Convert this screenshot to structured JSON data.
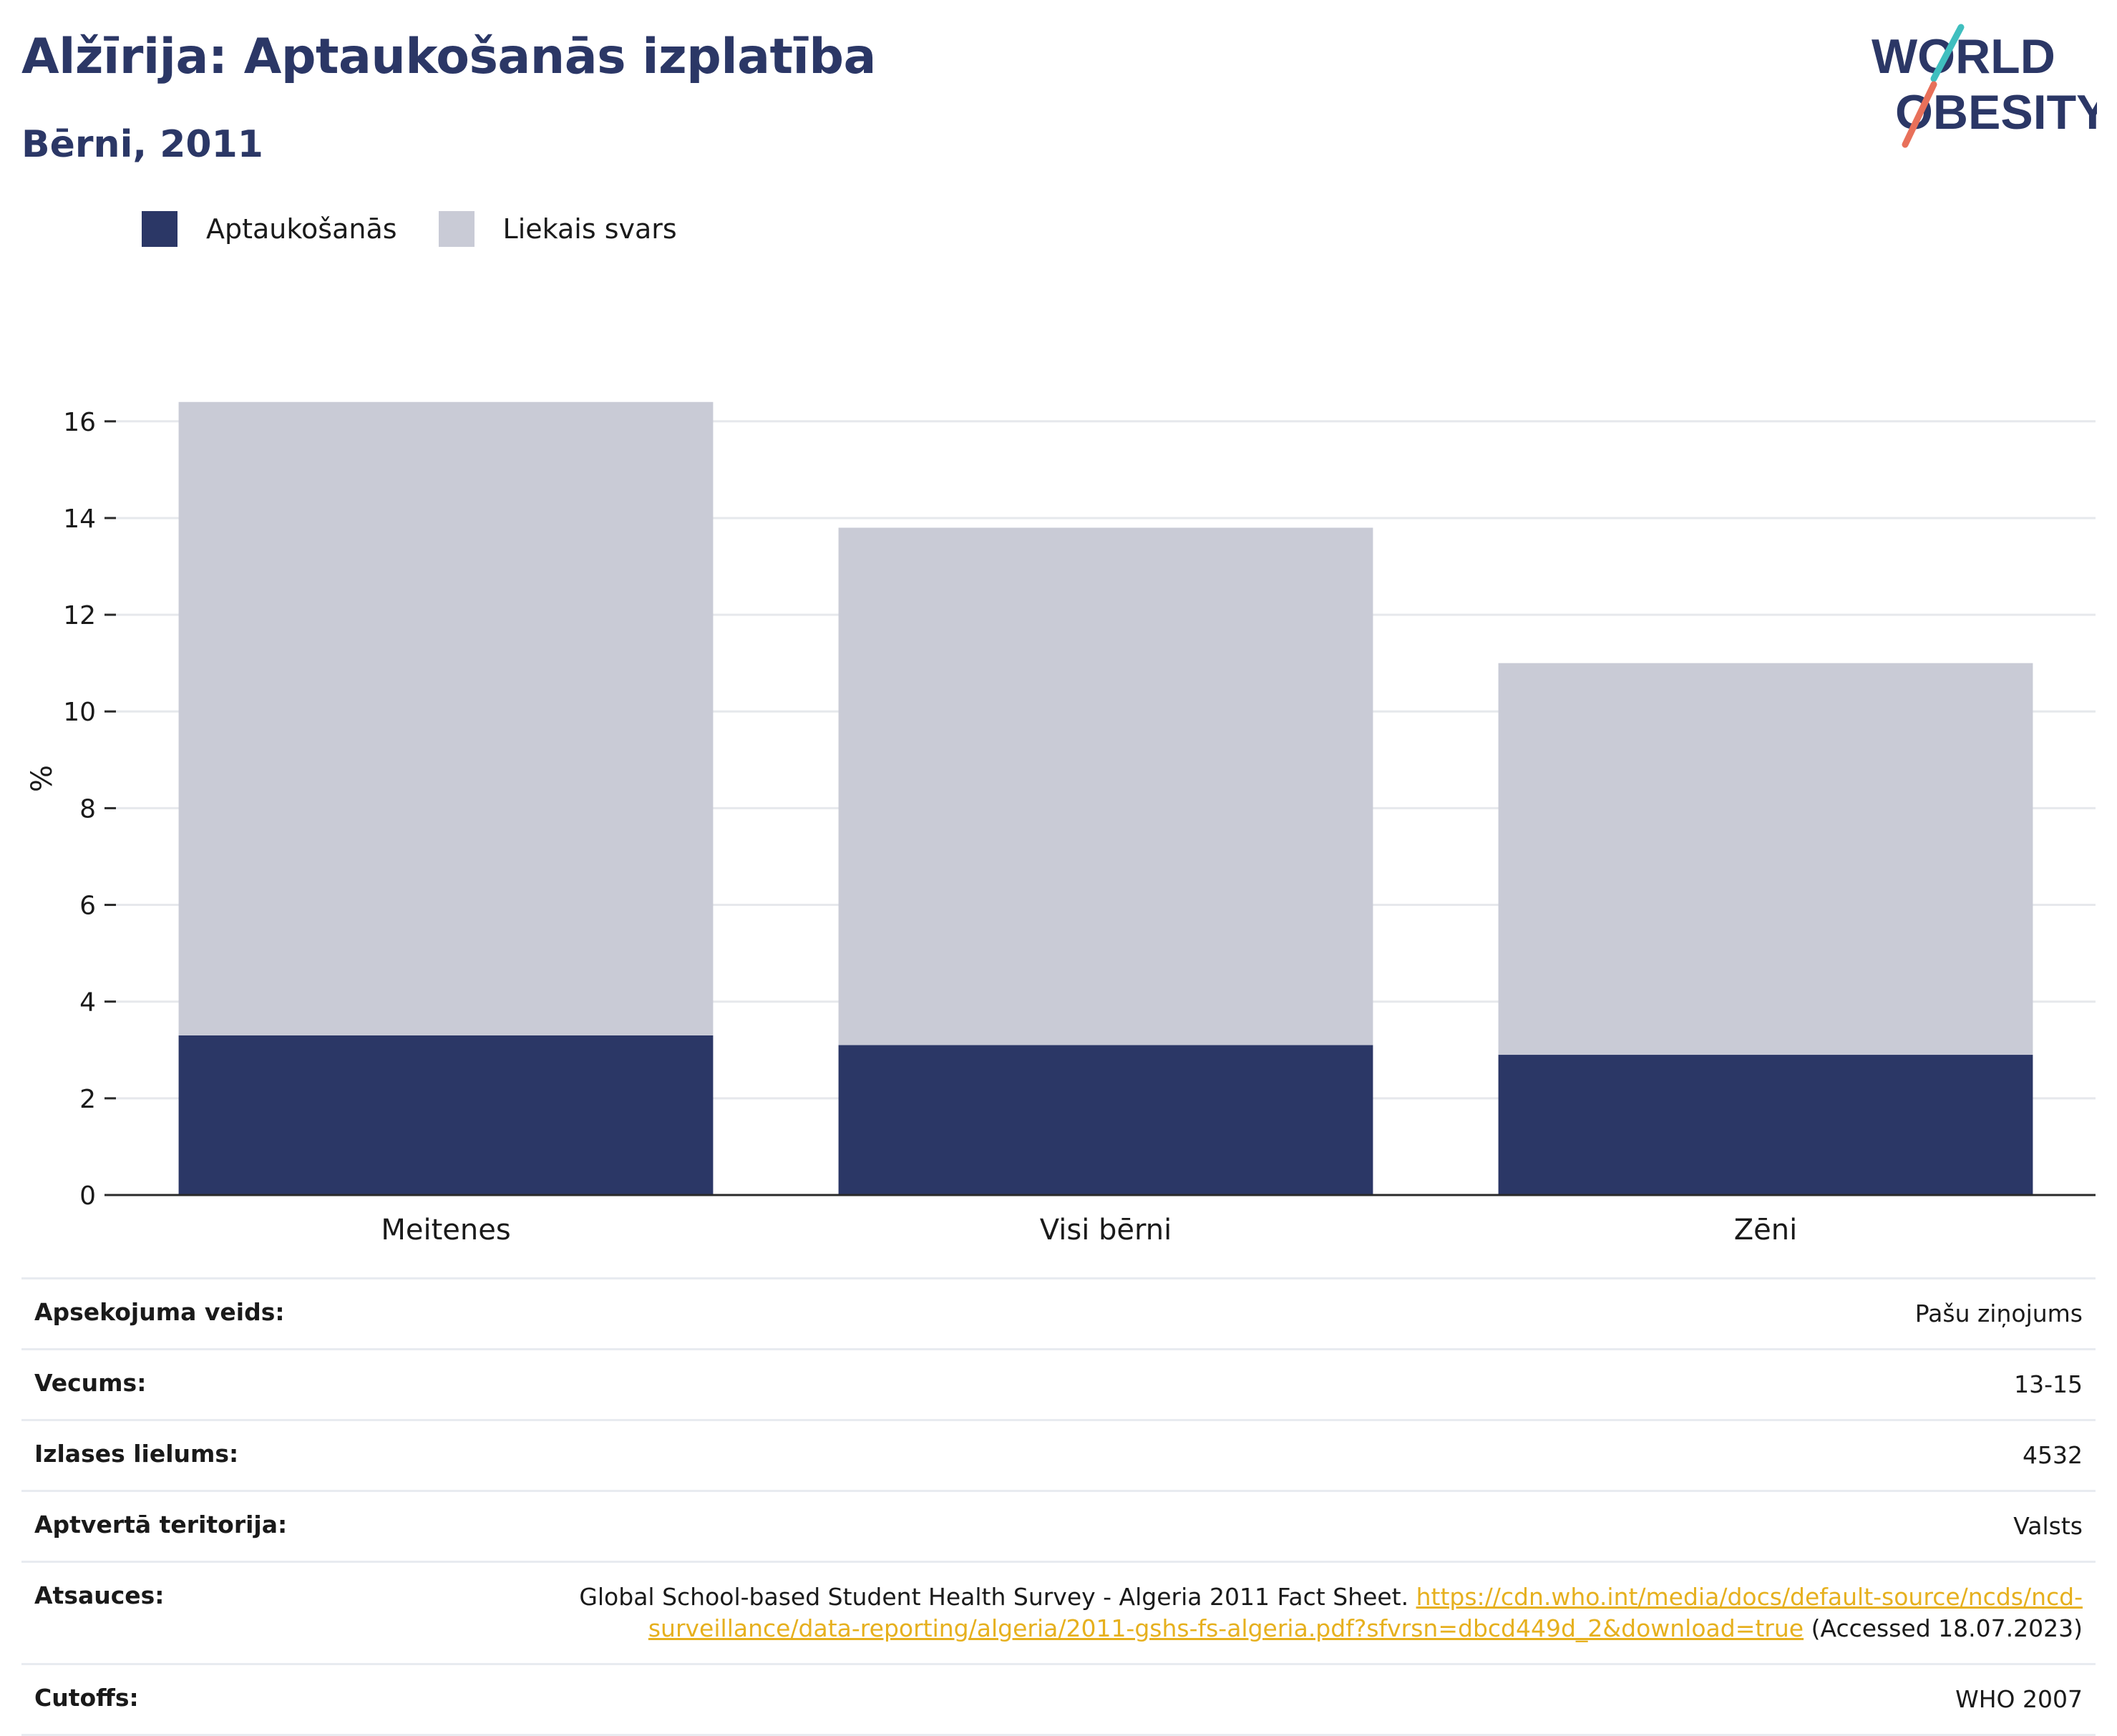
{
  "header": {
    "title": "Alžīrija: Aptaukošanās izplatība",
    "subtitle": "Bērni, 2011",
    "logo_line1": "WORLD",
    "logo_line2": "OBESITY"
  },
  "legend": {
    "items": [
      {
        "label": "Aptaukošanās",
        "color": "#2b3766"
      },
      {
        "label": "Liekais svars",
        "color": "#c9cbd6"
      }
    ]
  },
  "chart_data": {
    "type": "bar",
    "stacked": true,
    "categories": [
      "Meitenes",
      "Visi bērni",
      "Zēni"
    ],
    "series": [
      {
        "name": "Aptaukošanās",
        "values": [
          3.3,
          3.1,
          2.9
        ],
        "color": "#2b3766"
      },
      {
        "name": "Liekais svars",
        "values": [
          13.1,
          10.7,
          8.1
        ],
        "color": "#c9cbd6"
      }
    ],
    "ylabel": "%",
    "ylim": [
      0,
      16.5
    ],
    "yticks": [
      0,
      2,
      4,
      6,
      8,
      10,
      12,
      14,
      16
    ],
    "grid": true,
    "legend_position": "top-left"
  },
  "info": {
    "rows": [
      {
        "key": "Apsekojuma veids:",
        "value": "Pašu ziņojums"
      },
      {
        "key": "Vecums:",
        "value": "13-15"
      },
      {
        "key": "Izlases lielums:",
        "value": "4532"
      },
      {
        "key": "Aptvertā teritorija:",
        "value": "Valsts"
      },
      {
        "key": "Atsauces:",
        "value_prefix": "Global School-based Student Health Survey - Algeria 2011 Fact Sheet. ",
        "link": "https://cdn.who.int/media/docs/default-source/ncds/ncd-surveillance/data-reporting/algeria/2011-gshs-fs-algeria.pdf?sfvrsn=dbcd449d_2&download=true",
        "value_suffix": " (Accessed 18.07.2023)"
      },
      {
        "key": "Cutoffs:",
        "value": "WHO 2007"
      }
    ]
  }
}
